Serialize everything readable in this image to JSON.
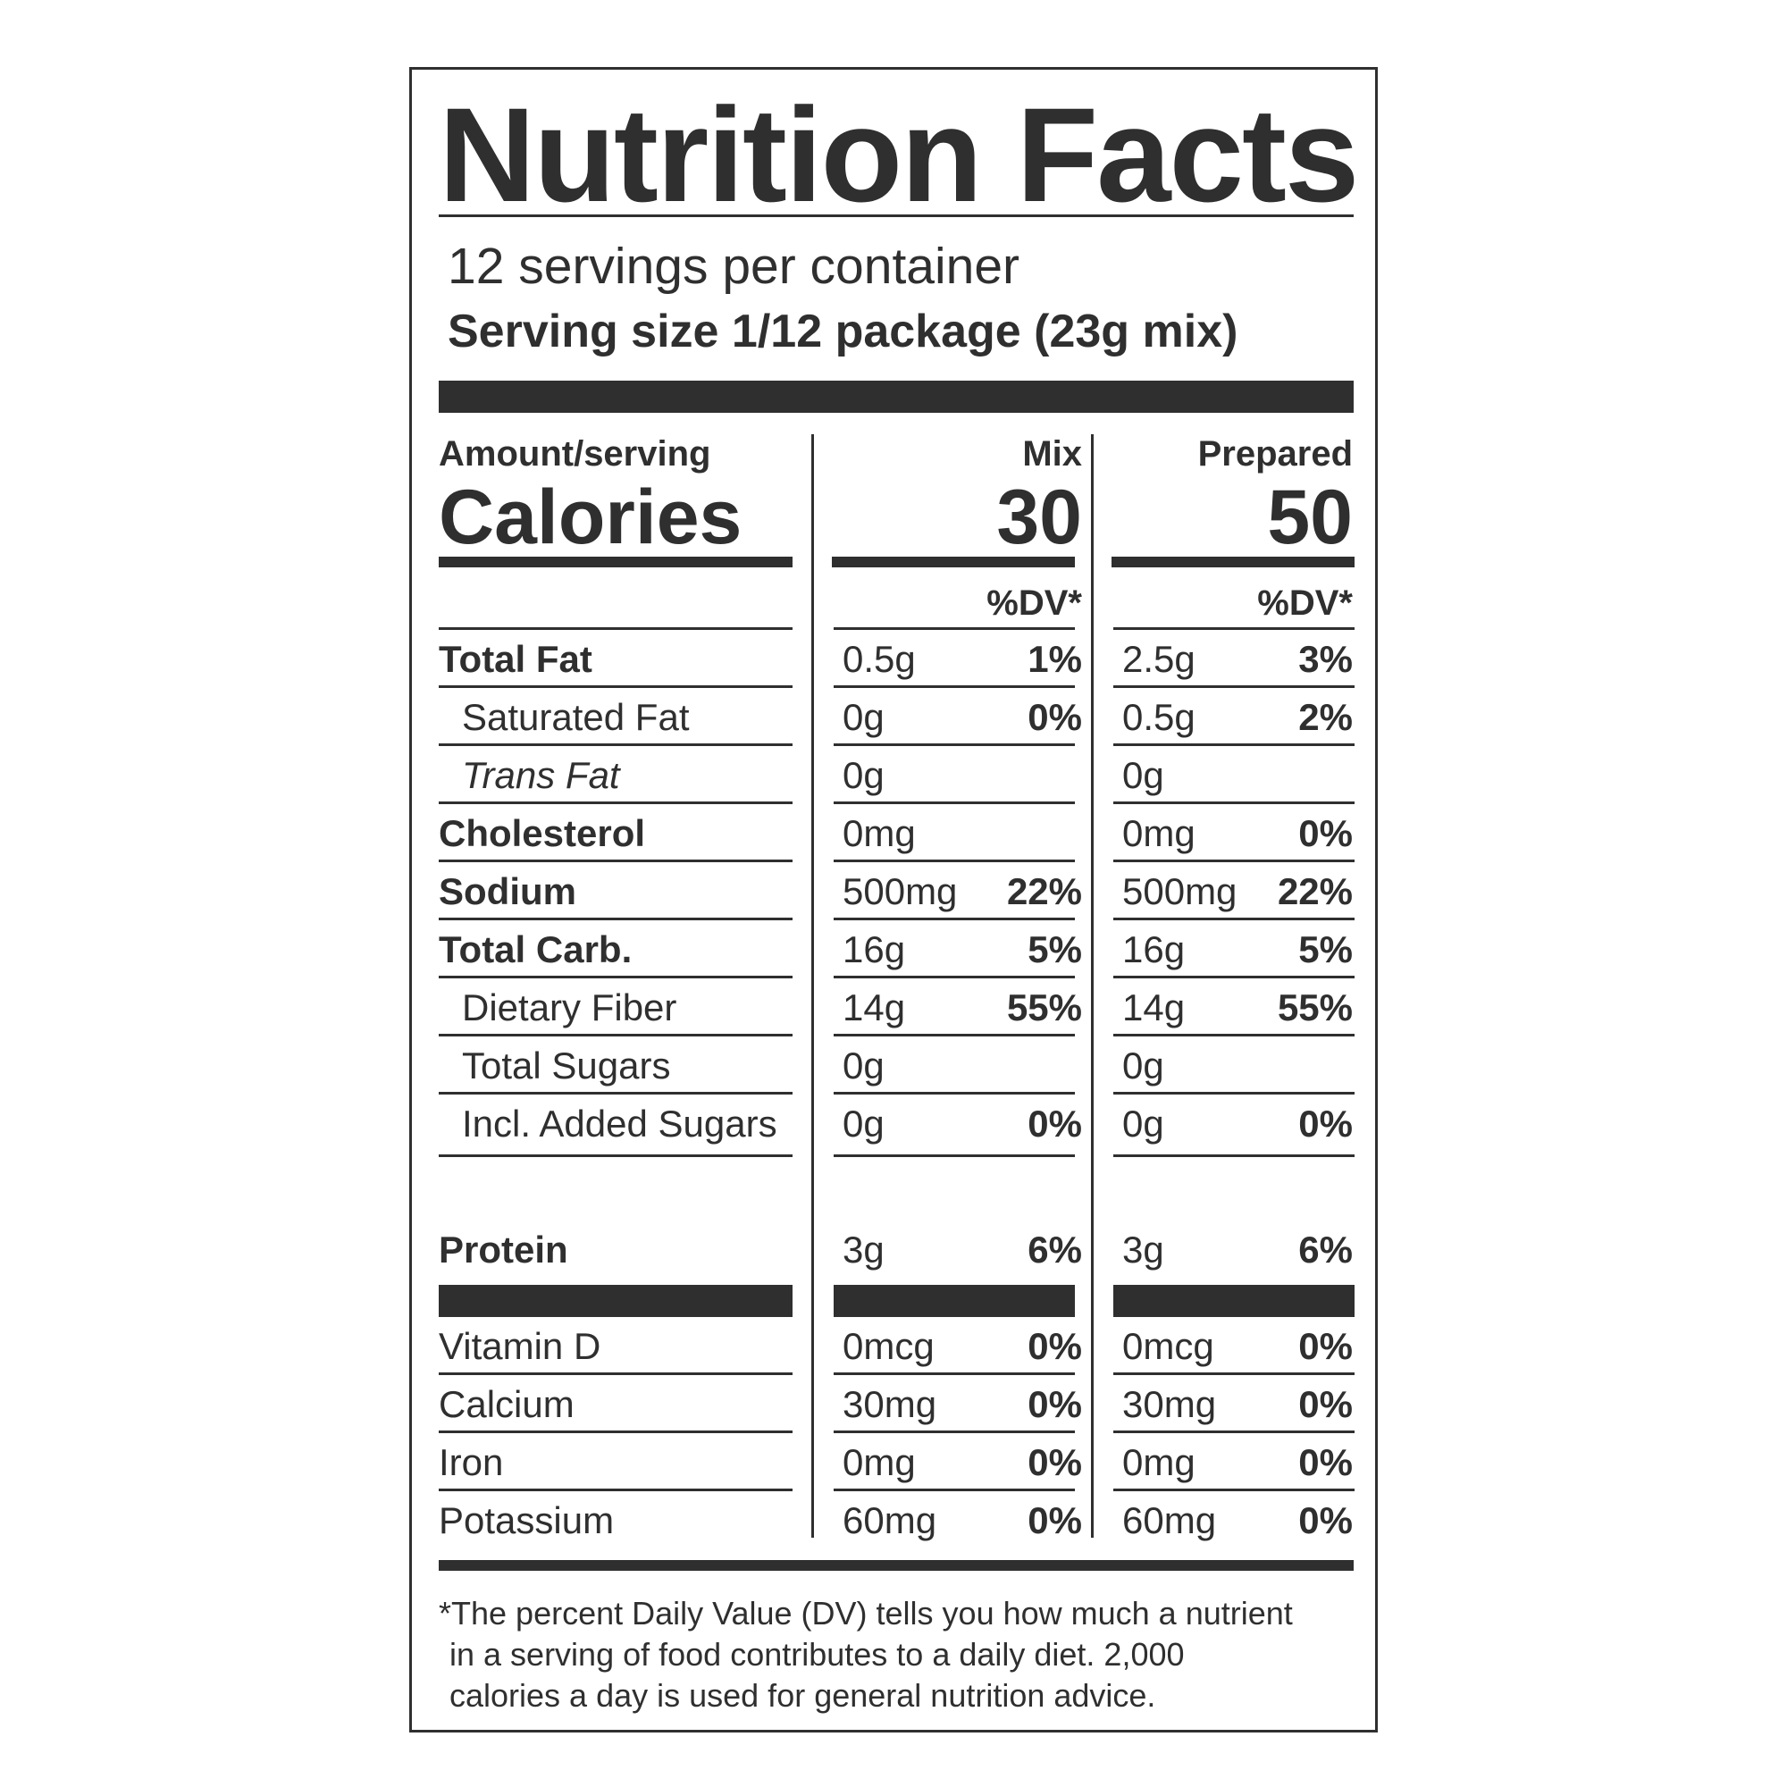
{
  "title": "Nutrition Facts",
  "servings_per_container": "12 servings per container",
  "serving_size": "Serving size 1/12 package (23g mix)",
  "header": {
    "amount_label": "Amount/serving",
    "calories_label": "Calories",
    "mix_label": "Mix",
    "prepared_label": "Prepared",
    "mix_calories": "30",
    "prepared_calories": "50",
    "dv_label": "%DV*"
  },
  "nutrients": [
    {
      "name": "Total Fat",
      "mix_amount": "0.5g",
      "mix_dv": "1%",
      "prep_amount": "2.5g",
      "prep_dv": "3%"
    },
    {
      "name": "Saturated Fat",
      "mix_amount": "0g",
      "mix_dv": "0%",
      "prep_amount": "0.5g",
      "prep_dv": "2%"
    },
    {
      "name": "Trans Fat",
      "mix_amount": "0g",
      "mix_dv": "",
      "prep_amount": "0g",
      "prep_dv": ""
    },
    {
      "name": "Cholesterol",
      "mix_amount": "0mg",
      "mix_dv": "",
      "prep_amount": "0mg",
      "prep_dv": "0%"
    },
    {
      "name": "Sodium",
      "mix_amount": "500mg",
      "mix_dv": "22%",
      "prep_amount": "500mg",
      "prep_dv": "22%"
    },
    {
      "name": "Total Carb.",
      "mix_amount": "16g",
      "mix_dv": "5%",
      "prep_amount": "16g",
      "prep_dv": "5%"
    },
    {
      "name": "Dietary Fiber",
      "mix_amount": "14g",
      "mix_dv": "55%",
      "prep_amount": "14g",
      "prep_dv": "55%"
    },
    {
      "name": "Total Sugars",
      "mix_amount": "0g",
      "mix_dv": "",
      "prep_amount": "0g",
      "prep_dv": ""
    },
    {
      "name": "Incl. Added Sugars",
      "mix_amount": "0g",
      "mix_dv": "0%",
      "prep_amount": "0g",
      "prep_dv": "0%"
    }
  ],
  "protein": {
    "name": "Protein",
    "mix_amount": "3g",
    "mix_dv": "6%",
    "prep_amount": "3g",
    "prep_dv": "6%"
  },
  "vitamins": [
    {
      "name": "Vitamin D",
      "mix_amount": "0mcg",
      "mix_dv": "0%",
      "prep_amount": "0mcg",
      "prep_dv": "0%"
    },
    {
      "name": "Calcium",
      "mix_amount": "30mg",
      "mix_dv": "0%",
      "prep_amount": "30mg",
      "prep_dv": "0%"
    },
    {
      "name": "Iron",
      "mix_amount": "0mg",
      "mix_dv": "0%",
      "prep_amount": "0mg",
      "prep_dv": "0%"
    },
    {
      "name": "Potassium",
      "mix_amount": "60mg",
      "mix_dv": "0%",
      "prep_amount": "60mg",
      "prep_dv": "0%"
    }
  ],
  "footnote": {
    "line1": "*The percent Daily Value (DV) tells you how much a nutrient",
    "line2": "in a serving of food contributes to a daily diet. 2,000",
    "line3": "calories a day is used for general nutrition advice."
  }
}
